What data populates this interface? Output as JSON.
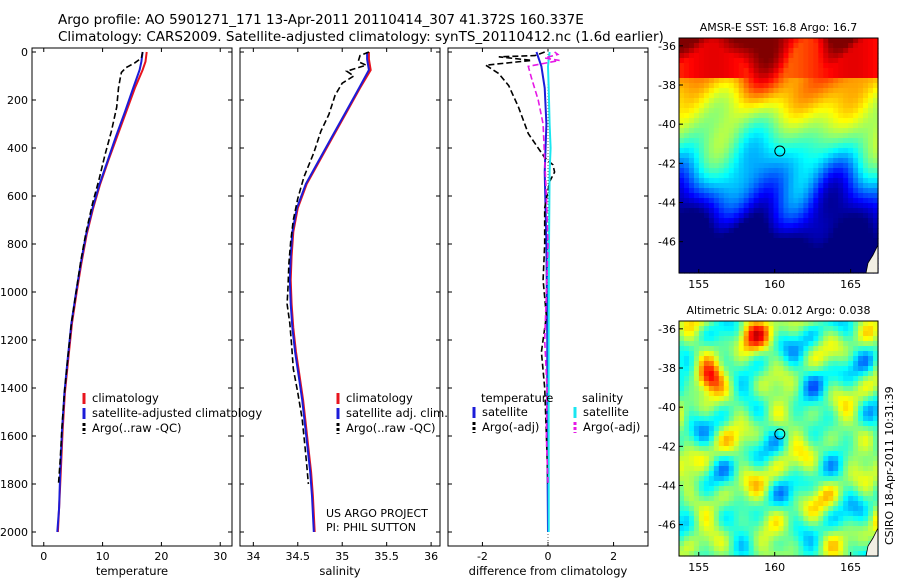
{
  "header": {
    "line1": "Argo profile: AO 5901271_171 13-Apr-2011 20110414_307 41.372S 160.337E",
    "line2": "Climatology: CARS2009. Satellite-adjusted climatology: synTS_20110412.nc (1.6d earlier)"
  },
  "credit": "CSIRO 18-Apr-2011 10:31:39",
  "colors": {
    "red": "#e8141e",
    "blue": "#1c1cd8",
    "black": "#000000",
    "cyan": "#19e6f0",
    "magenta": "#e619e6"
  },
  "chart_data": [
    {
      "id": "temperature",
      "type": "line",
      "xlabel": "temperature",
      "xlim": [
        -2,
        32
      ],
      "ylim": [
        2050,
        0
      ],
      "xticks": [
        0,
        10,
        20,
        30
      ],
      "yticks": [
        0,
        200,
        400,
        600,
        800,
        1000,
        1200,
        1400,
        1600,
        1800,
        2000
      ],
      "legend": {
        "placement": "lower-middle",
        "entries": [
          "climatology",
          "satellite-adjusted climatology",
          "Argo(..raw -QC)"
        ]
      },
      "series": [
        {
          "name": "climatology",
          "color": "red",
          "style": "solid",
          "points": [
            [
              17.5,
              0
            ],
            [
              17.3,
              40
            ],
            [
              16.8,
              75
            ],
            [
              15.5,
              150
            ],
            [
              14,
              250
            ],
            [
              12.5,
              350
            ],
            [
              11,
              450
            ],
            [
              9.6,
              550
            ],
            [
              8.4,
              650
            ],
            [
              7.3,
              760
            ],
            [
              6.4,
              880
            ],
            [
              5.6,
              1000
            ],
            [
              4.8,
              1130
            ],
            [
              4.2,
              1270
            ],
            [
              3.6,
              1420
            ],
            [
              3.2,
              1580
            ],
            [
              2.9,
              1750
            ],
            [
              2.6,
              1900
            ],
            [
              2.4,
              2000
            ]
          ]
        },
        {
          "name": "satellite-adjusted climatology",
          "color": "blue",
          "style": "solid",
          "points": [
            [
              16.8,
              0
            ],
            [
              16.6,
              40
            ],
            [
              16.3,
              75
            ],
            [
              15.2,
              150
            ],
            [
              13.8,
              250
            ],
            [
              12.3,
              350
            ],
            [
              10.9,
              450
            ],
            [
              9.5,
              550
            ],
            [
              8.3,
              650
            ],
            [
              7.2,
              760
            ],
            [
              6.3,
              880
            ],
            [
              5.5,
              1000
            ],
            [
              4.7,
              1130
            ],
            [
              4.1,
              1270
            ],
            [
              3.5,
              1420
            ],
            [
              3.1,
              1580
            ],
            [
              2.8,
              1750
            ],
            [
              2.6,
              1900
            ],
            [
              2.3,
              2000
            ]
          ]
        },
        {
          "name": "Argo(..raw -QC)",
          "color": "black",
          "style": "dashed",
          "points": [
            [
              16.8,
              0
            ],
            [
              16.6,
              25
            ],
            [
              15.5,
              45
            ],
            [
              14,
              65
            ],
            [
              13.2,
              85
            ],
            [
              13,
              110
            ],
            [
              12.7,
              150
            ],
            [
              12.4,
              230
            ],
            [
              11.5,
              330
            ],
            [
              10.4,
              430
            ],
            [
              9.4,
              530
            ],
            [
              8.3,
              630
            ],
            [
              7.2,
              750
            ],
            [
              6.3,
              870
            ],
            [
              5.5,
              1000
            ],
            [
              4.7,
              1130
            ],
            [
              4.1,
              1270
            ],
            [
              3.5,
              1420
            ],
            [
              3.1,
              1560
            ],
            [
              2.8,
              1700
            ],
            [
              2.5,
              1800
            ]
          ]
        }
      ]
    },
    {
      "id": "salinity",
      "type": "line",
      "xlabel": "salinity",
      "xlim": [
        33.85,
        36.1
      ],
      "ylim": [
        2050,
        0
      ],
      "xticks": [
        34,
        34.5,
        35,
        35.5,
        36
      ],
      "legend": {
        "placement": "lower-middle",
        "entries": [
          "climatology",
          "satellite adj. clim.",
          "Argo(..raw -QC)"
        ]
      },
      "annotations": [
        "US ARGO PROJECT",
        "PI: PHIL SUTTON"
      ],
      "series": [
        {
          "name": "climatology",
          "color": "red",
          "style": "solid",
          "points": [
            [
              35.3,
              0
            ],
            [
              35.3,
              30
            ],
            [
              35.32,
              75
            ],
            [
              35.2,
              150
            ],
            [
              35.05,
              250
            ],
            [
              34.9,
              350
            ],
            [
              34.75,
              450
            ],
            [
              34.6,
              550
            ],
            [
              34.5,
              650
            ],
            [
              34.45,
              750
            ],
            [
              34.43,
              850
            ],
            [
              34.42,
              950
            ],
            [
              34.43,
              1050
            ],
            [
              34.45,
              1150
            ],
            [
              34.48,
              1250
            ],
            [
              34.52,
              1350
            ],
            [
              34.56,
              1450
            ],
            [
              34.59,
              1550
            ],
            [
              34.62,
              1650
            ],
            [
              34.65,
              1750
            ],
            [
              34.67,
              1850
            ],
            [
              34.69,
              2000
            ]
          ]
        },
        {
          "name": "satellite adj. clim.",
          "color": "blue",
          "style": "solid",
          "points": [
            [
              35.28,
              0
            ],
            [
              35.28,
              30
            ],
            [
              35.3,
              75
            ],
            [
              35.19,
              150
            ],
            [
              35.04,
              250
            ],
            [
              34.89,
              350
            ],
            [
              34.74,
              450
            ],
            [
              34.59,
              550
            ],
            [
              34.49,
              650
            ],
            [
              34.44,
              750
            ],
            [
              34.42,
              850
            ],
            [
              34.41,
              950
            ],
            [
              34.42,
              1050
            ],
            [
              34.44,
              1150
            ],
            [
              34.47,
              1250
            ],
            [
              34.51,
              1350
            ],
            [
              34.55,
              1450
            ],
            [
              34.58,
              1550
            ],
            [
              34.61,
              1650
            ],
            [
              34.64,
              1750
            ],
            [
              34.66,
              1850
            ],
            [
              34.68,
              2000
            ]
          ]
        },
        {
          "name": "Argo(..raw -QC)",
          "color": "black",
          "style": "dashed",
          "points": [
            [
              35.3,
              0
            ],
            [
              35.2,
              15
            ],
            [
              35.18,
              40
            ],
            [
              35.27,
              55
            ],
            [
              35.05,
              80
            ],
            [
              35.13,
              100
            ],
            [
              35,
              130
            ],
            [
              34.92,
              180
            ],
            [
              34.85,
              260
            ],
            [
              34.76,
              330
            ],
            [
              34.68,
              420
            ],
            [
              34.57,
              520
            ],
            [
              34.5,
              610
            ],
            [
              34.45,
              700
            ],
            [
              34.42,
              790
            ],
            [
              34.4,
              880
            ],
            [
              34.39,
              980
            ],
            [
              34.38,
              1050
            ],
            [
              34.41,
              1130
            ],
            [
              34.43,
              1220
            ],
            [
              34.45,
              1320
            ],
            [
              34.5,
              1420
            ],
            [
              34.55,
              1530
            ],
            [
              34.58,
              1640
            ],
            [
              34.6,
              1720
            ],
            [
              34.62,
              1800
            ]
          ]
        }
      ]
    },
    {
      "id": "difference",
      "type": "line",
      "xlabel": "difference from climatology",
      "xlim": [
        -3.05,
        3.05
      ],
      "ylim": [
        2050,
        0
      ],
      "xticks": [
        -2,
        0,
        2
      ],
      "legend": {
        "placement": "lower-middle",
        "headers": [
          "temperature",
          "salinity"
        ],
        "entries": [
          "satellite",
          "Argo(-adj)",
          "satellite",
          "Argo(-adj)"
        ]
      },
      "series": [
        {
          "name": "temperature satellite",
          "color": "blue",
          "style": "solid",
          "points": [
            [
              -0.35,
              0
            ],
            [
              -0.2,
              60
            ],
            [
              -0.1,
              150
            ],
            [
              -0.05,
              300
            ],
            [
              -0.1,
              500
            ],
            [
              -0.05,
              800
            ],
            [
              -0.02,
              1200
            ],
            [
              -0.02,
              1600
            ],
            [
              0,
              2000
            ]
          ]
        },
        {
          "name": "temperature Argo(-adj)",
          "color": "black",
          "style": "dashed",
          "points": [
            [
              -0.1,
              0
            ],
            [
              -0.4,
              15
            ],
            [
              -1.5,
              20
            ],
            [
              -0.5,
              35
            ],
            [
              -1.9,
              55
            ],
            [
              -1.5,
              90
            ],
            [
              -1.2,
              140
            ],
            [
              -0.9,
              230
            ],
            [
              -0.6,
              340
            ],
            [
              -0.1,
              440
            ],
            [
              0.15,
              470
            ],
            [
              0.2,
              500
            ],
            [
              0.05,
              540
            ],
            [
              -0.1,
              650
            ],
            [
              -0.1,
              800
            ],
            [
              -0.15,
              950
            ],
            [
              -0.05,
              1100
            ],
            [
              -0.2,
              1250
            ],
            [
              -0.1,
              1400
            ],
            [
              -0.05,
              1600
            ],
            [
              0,
              1800
            ]
          ]
        },
        {
          "name": "salinity satellite",
          "color": "cyan",
          "style": "solid",
          "points": [
            [
              0.05,
              0
            ],
            [
              0,
              60
            ],
            [
              0.02,
              150
            ],
            [
              0.05,
              300
            ],
            [
              0.08,
              400
            ],
            [
              0.05,
              500
            ],
            [
              0.03,
              800
            ],
            [
              0.02,
              1200
            ],
            [
              0.02,
              1600
            ],
            [
              0.02,
              2000
            ]
          ]
        },
        {
          "name": "salinity Argo(-adj)",
          "color": "magenta",
          "style": "dashed",
          "points": [
            [
              0.2,
              0
            ],
            [
              0.3,
              10
            ],
            [
              -0.1,
              25
            ],
            [
              0.35,
              35
            ],
            [
              -0.6,
              60
            ],
            [
              -0.5,
              110
            ],
            [
              -0.3,
              200
            ],
            [
              -0.15,
              300
            ],
            [
              -0.1,
              450
            ],
            [
              -0.05,
              600
            ],
            [
              0,
              800
            ],
            [
              -0.05,
              1000
            ],
            [
              -0.1,
              1200
            ],
            [
              -0.03,
              1400
            ],
            [
              -0.05,
              1600
            ],
            [
              0,
              1800
            ]
          ]
        }
      ]
    },
    {
      "id": "amsre-sst",
      "type": "heatmap",
      "title": "AMSR-E SST: 16.8 Argo: 16.7",
      "xlim": [
        153.7,
        166.8
      ],
      "ylim": [
        -47.6,
        -35.6
      ],
      "xticks": [
        155,
        160,
        165
      ],
      "yticks": [
        -36,
        -38,
        -40,
        -42,
        -44,
        -46
      ],
      "marker": {
        "lon": 160.337,
        "lat": -41.372
      }
    },
    {
      "id": "altimetric-sla",
      "type": "heatmap",
      "title": "Altimetric SLA: 0.012 Argo: 0.038",
      "xlim": [
        153.7,
        166.8
      ],
      "ylim": [
        -47.6,
        -35.6
      ],
      "xticks": [
        155,
        160,
        165
      ],
      "yticks": [
        -36,
        -38,
        -40,
        -42,
        -44,
        -46
      ],
      "marker": {
        "lon": 160.337,
        "lat": -41.372
      }
    }
  ]
}
